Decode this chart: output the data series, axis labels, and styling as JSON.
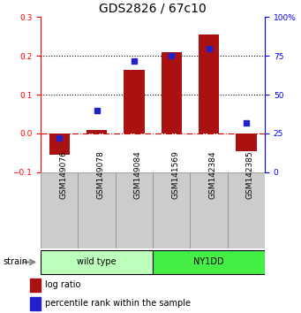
{
  "title": "GDS2826 / 67c10",
  "samples": [
    "GSM149076",
    "GSM149078",
    "GSM149084",
    "GSM141569",
    "GSM142384",
    "GSM142385"
  ],
  "log_ratios": [
    -0.055,
    0.01,
    0.165,
    0.21,
    0.255,
    -0.045
  ],
  "percentile_ranks": [
    22,
    40,
    72,
    75,
    80,
    32
  ],
  "groups": [
    {
      "label": "wild type",
      "indices": [
        0,
        1,
        2
      ],
      "color": "#bbffbb"
    },
    {
      "label": "NY1DD",
      "indices": [
        3,
        4,
        5
      ],
      "color": "#44ee44"
    }
  ],
  "bar_color": "#aa1111",
  "dot_color": "#2222cc",
  "ylim_left": [
    -0.1,
    0.3
  ],
  "ylim_right": [
    0,
    100
  ],
  "yticks_left": [
    -0.1,
    0.0,
    0.1,
    0.2,
    0.3
  ],
  "yticks_right": [
    0,
    25,
    50,
    75,
    100
  ],
  "hline_positions": [
    0.0,
    0.1,
    0.2
  ],
  "hline_styles": [
    "-.",
    ":",
    ":"
  ],
  "hline_colors": [
    "#cc0000",
    "#000000",
    "#000000"
  ],
  "title_fontsize": 10,
  "tick_fontsize": 6.5,
  "sample_fontsize": 6.5,
  "label_fontsize": 7,
  "legend_fontsize": 7,
  "strain_label": "strain",
  "legend_items": [
    {
      "color": "#aa1111",
      "label": "log ratio"
    },
    {
      "color": "#2222cc",
      "label": "percentile rank within the sample"
    }
  ],
  "bar_width": 0.55,
  "dot_size": 4,
  "sample_box_color": "#cccccc",
  "sample_box_edge": "#888888"
}
